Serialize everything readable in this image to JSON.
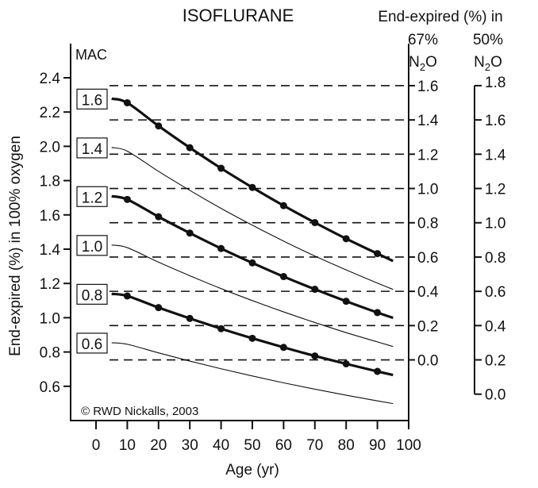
{
  "chart_data": {
    "type": "line",
    "title": "ISOFLURANE",
    "xlabel": "Age (yr)",
    "ylabel": "End-expired (%) in 100% oxygen",
    "y_unit_label": "MAC",
    "right_axis_title": "End-expired (%) in",
    "right_axes": [
      {
        "label_line1": "67%",
        "label_main": "N",
        "label_sub": "2",
        "label_end": "O",
        "ticks": [
          "1.6",
          "1.4",
          "1.2",
          "1.0",
          "0.8",
          "0.6",
          "0.4",
          "0.2",
          "0.0"
        ],
        "values": [
          1.6,
          1.4,
          1.2,
          1.0,
          0.8,
          0.6,
          0.4,
          0.2,
          0.0
        ],
        "dashed_gridlines": true
      },
      {
        "label_line1": "50%",
        "label_main": "N",
        "label_sub": "2",
        "label_end": "O",
        "ticks": [
          "1.8",
          "1.6",
          "1.4",
          "1.2",
          "1.0",
          "0.8",
          "0.6",
          "0.4",
          "0.2",
          "0.0"
        ],
        "values": [
          1.8,
          1.6,
          1.4,
          1.2,
          1.0,
          0.8,
          0.6,
          0.4,
          0.2,
          0.0
        ]
      }
    ],
    "xlim": [
      0,
      100
    ],
    "ylim": [
      0.6,
      2.4
    ],
    "x_ticks": [
      "0",
      "10",
      "20",
      "30",
      "40",
      "50",
      "60",
      "70",
      "80",
      "90",
      "100"
    ],
    "y_ticks": [
      "2.4",
      "2.2",
      "2.0",
      "1.8",
      "1.6",
      "1.4",
      "1.2",
      "1.0",
      "0.8",
      "0.6"
    ],
    "x": [
      5,
      10,
      20,
      30,
      40,
      50,
      60,
      70,
      80,
      90,
      95
    ],
    "series": [
      {
        "name": "1.6",
        "bold": true,
        "markers": true,
        "values": [
          2.278,
          2.254,
          2.119,
          1.992,
          1.872,
          1.76,
          1.654,
          1.555,
          1.461,
          1.374,
          1.331
        ]
      },
      {
        "name": "1.4",
        "bold": false,
        "markers": false,
        "values": [
          1.993,
          1.972,
          1.854,
          1.743,
          1.638,
          1.54,
          1.447,
          1.36,
          1.279,
          1.202,
          1.165
        ]
      },
      {
        "name": "1.2",
        "bold": true,
        "markers": true,
        "values": [
          1.709,
          1.69,
          1.589,
          1.494,
          1.404,
          1.32,
          1.24,
          1.166,
          1.096,
          1.03,
          0.999
        ]
      },
      {
        "name": "1.0",
        "bold": false,
        "markers": false,
        "values": [
          1.424,
          1.409,
          1.324,
          1.245,
          1.17,
          1.1,
          1.034,
          0.972,
          0.913,
          0.859,
          0.832
        ]
      },
      {
        "name": "0.8",
        "bold": true,
        "markers": true,
        "values": [
          1.139,
          1.127,
          1.059,
          0.996,
          0.936,
          0.88,
          0.827,
          0.777,
          0.731,
          0.687,
          0.666
        ]
      },
      {
        "name": "0.6",
        "bold": false,
        "markers": false,
        "values": [
          0.854,
          0.845,
          0.795,
          0.747,
          0.702,
          0.66,
          0.62,
          0.583,
          0.548,
          0.515,
          0.499
        ]
      }
    ],
    "annotation": "© RWD Nickalls, 2003",
    "grid": false,
    "colors": {
      "ink": "#111111",
      "background": "#ffffff"
    }
  }
}
